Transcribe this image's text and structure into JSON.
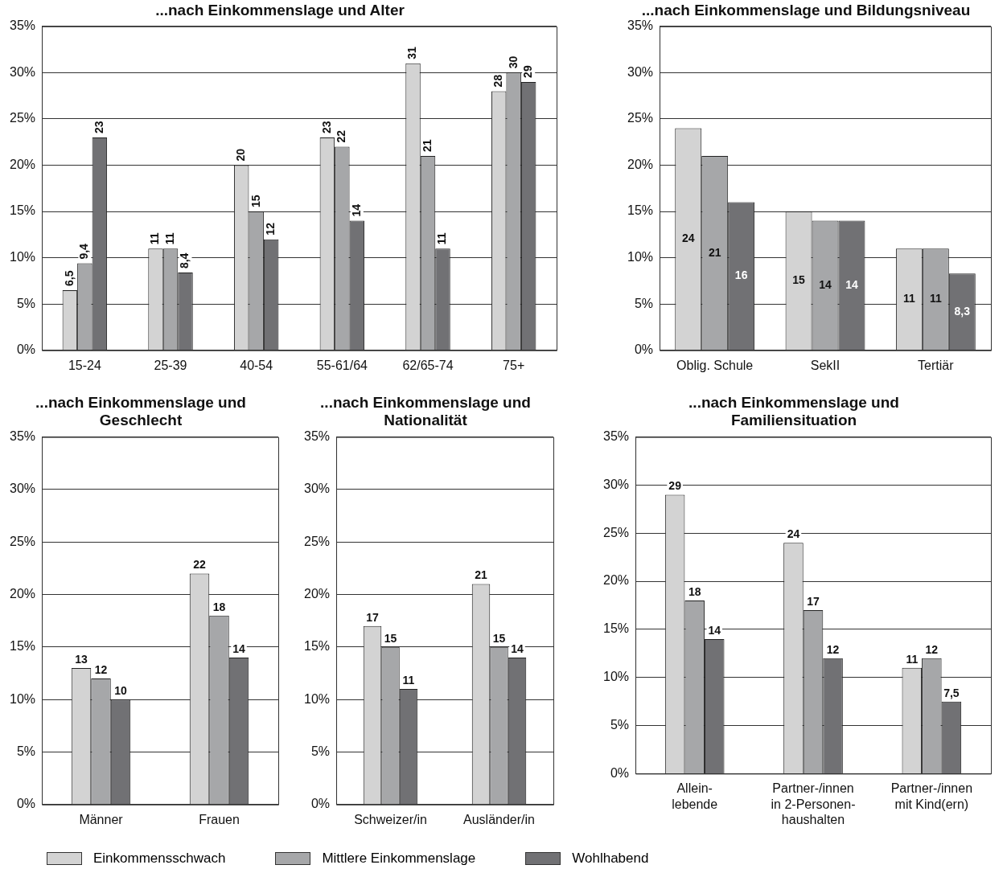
{
  "chart_data": [
    {
      "type": "bar",
      "title": "...nach Einkommenslage und Alter",
      "categories": [
        "15-24",
        "25-39",
        "40-54",
        "55-61/64",
        "62/65-74",
        "75+"
      ],
      "series": [
        {
          "name": "Einkommensschwach",
          "color": "#d3d3d3",
          "values": [
            6.5,
            11,
            20,
            23,
            31,
            28
          ],
          "value_labels": [
            "6,5",
            "11",
            "20",
            "23",
            "31",
            "28"
          ]
        },
        {
          "name": "Mittlere Einkommenslage",
          "color": "#a6a7a9",
          "values": [
            9.4,
            11,
            15,
            22,
            21,
            30
          ],
          "value_labels": [
            "9,4",
            "11",
            "15",
            "22",
            "21",
            "30"
          ]
        },
        {
          "name": "Wohlhabend",
          "color": "#717174",
          "values": [
            23,
            8.4,
            12,
            14,
            11,
            29
          ],
          "value_labels": [
            "23",
            "8,4",
            "12",
            "14",
            "11",
            "29"
          ]
        }
      ],
      "ylim": [
        0,
        35
      ],
      "yticks": [
        {
          "value": 0,
          "label": "0%"
        },
        {
          "value": 5,
          "label": "5%"
        },
        {
          "value": 10,
          "label": "10%"
        },
        {
          "value": 15,
          "label": "15%"
        },
        {
          "value": 20,
          "label": "20%"
        },
        {
          "value": 25,
          "label": "25%"
        },
        {
          "value": 30,
          "label": "30%"
        },
        {
          "value": 35,
          "label": "35%"
        }
      ],
      "grid": "y",
      "legend": "bottom"
    },
    {
      "type": "bar",
      "title": "...nach Einkommenslage und Bildungsniveau",
      "categories": [
        "Oblig. Schule",
        "SekII",
        "Tertiär"
      ],
      "series": [
        {
          "color": "#d3d3d3",
          "values": [
            24,
            15,
            11
          ],
          "value_labels": [
            "24",
            "15",
            "11"
          ]
        },
        {
          "color": "#a6a7a9",
          "values": [
            21,
            14,
            11
          ],
          "value_labels": [
            "21",
            "14",
            "11"
          ]
        },
        {
          "color": "#717174",
          "values": [
            16,
            14,
            8.3
          ],
          "value_labels": [
            "16",
            "14",
            "8,3"
          ]
        }
      ],
      "ylim": [
        0,
        35
      ],
      "yticks": [
        {
          "value": 0,
          "label": "0%"
        },
        {
          "value": 5,
          "label": "5%"
        },
        {
          "value": 10,
          "label": "10%"
        },
        {
          "value": 15,
          "label": "15%"
        },
        {
          "value": 20,
          "label": "20%"
        },
        {
          "value": 25,
          "label": "25%"
        },
        {
          "value": 30,
          "label": "30%"
        },
        {
          "value": 35,
          "label": "35%"
        }
      ],
      "grid": "y"
    },
    {
      "type": "bar",
      "title": "...nach Einkommenslage und\nGeschlecht",
      "categories": [
        "Männer",
        "Frauen"
      ],
      "series": [
        {
          "color": "#d3d3d3",
          "values": [
            13,
            22
          ],
          "value_labels": [
            "13",
            "22"
          ]
        },
        {
          "color": "#a6a7a9",
          "values": [
            12,
            18
          ],
          "value_labels": [
            "12",
            "18"
          ]
        },
        {
          "color": "#717174",
          "values": [
            10,
            14
          ],
          "value_labels": [
            "10",
            "14"
          ]
        }
      ],
      "ylim": [
        0,
        35
      ],
      "yticks": [
        {
          "value": 0,
          "label": "0%"
        },
        {
          "value": 5,
          "label": "5%"
        },
        {
          "value": 10,
          "label": "10%"
        },
        {
          "value": 15,
          "label": "15%"
        },
        {
          "value": 20,
          "label": "20%"
        },
        {
          "value": 25,
          "label": "25%"
        },
        {
          "value": 30,
          "label": "30%"
        },
        {
          "value": 35,
          "label": "35%"
        }
      ],
      "grid": "y"
    },
    {
      "type": "bar",
      "title": "...nach Einkommenslage und\nNationalität",
      "categories": [
        "Schweizer/in",
        "Ausländer/in"
      ],
      "series": [
        {
          "color": "#d3d3d3",
          "values": [
            17,
            21
          ],
          "value_labels": [
            "17",
            "21"
          ]
        },
        {
          "color": "#a6a7a9",
          "values": [
            15,
            15
          ],
          "value_labels": [
            "15",
            "15"
          ]
        },
        {
          "color": "#717174",
          "values": [
            11,
            14
          ],
          "value_labels": [
            "11",
            "14"
          ]
        }
      ],
      "ylim": [
        0,
        35
      ],
      "yticks": [
        {
          "value": 0,
          "label": "0%"
        },
        {
          "value": 5,
          "label": "5%"
        },
        {
          "value": 10,
          "label": "10%"
        },
        {
          "value": 15,
          "label": "15%"
        },
        {
          "value": 20,
          "label": "20%"
        },
        {
          "value": 25,
          "label": "25%"
        },
        {
          "value": 30,
          "label": "30%"
        },
        {
          "value": 35,
          "label": "35%"
        }
      ],
      "grid": "y"
    },
    {
      "type": "bar",
      "title": "...nach Einkommenslage und\nFamiliensituation",
      "categories": [
        "Allein-\nlebende",
        "Partner-/innen\nin 2-Personen-\nhaushalten",
        "Partner-/innen\nmit Kind(ern)"
      ],
      "series": [
        {
          "color": "#d3d3d3",
          "values": [
            29,
            24,
            11
          ],
          "value_labels": [
            "29",
            "24",
            "11"
          ]
        },
        {
          "color": "#a6a7a9",
          "values": [
            18,
            17,
            12
          ],
          "value_labels": [
            "18",
            "17",
            "12"
          ]
        },
        {
          "color": "#717174",
          "values": [
            14,
            12,
            7.5
          ],
          "value_labels": [
            "14",
            "12",
            "7,5"
          ]
        }
      ],
      "ylim": [
        0,
        35
      ],
      "yticks": [
        {
          "value": 0,
          "label": "0%"
        },
        {
          "value": 5,
          "label": "5%"
        },
        {
          "value": 10,
          "label": "10%"
        },
        {
          "value": 15,
          "label": "15%"
        },
        {
          "value": 20,
          "label": "20%"
        },
        {
          "value": 25,
          "label": "25%"
        },
        {
          "value": 30,
          "label": "30%"
        },
        {
          "value": 35,
          "label": "35%"
        }
      ],
      "grid": "y"
    }
  ]
}
